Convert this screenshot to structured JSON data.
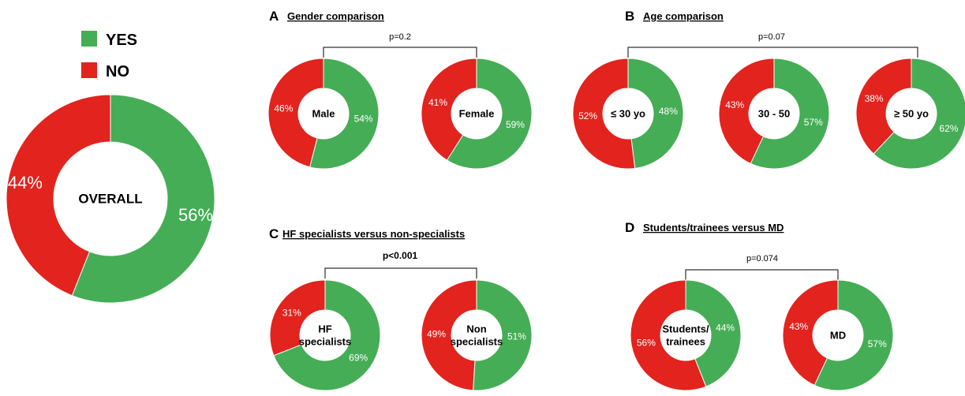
{
  "colors": {
    "yes": "#45ad55",
    "no": "#e2231e"
  },
  "legend": [
    {
      "label": "YES",
      "color": "#45ad55"
    },
    {
      "label": "NO",
      "color": "#e2231e"
    }
  ],
  "chart_data": [
    {
      "type": "pie",
      "id": "overall",
      "center_label": [
        "OVERALL"
      ],
      "slices": [
        {
          "name": "YES",
          "value": 56,
          "label": "56%"
        },
        {
          "name": "NO",
          "value": 44,
          "label": "44%"
        }
      ]
    },
    {
      "type": "pie",
      "panel": "A",
      "id": "male",
      "center_label": [
        "Male"
      ],
      "slices": [
        {
          "name": "YES",
          "value": 54,
          "label": "54%"
        },
        {
          "name": "NO",
          "value": 46,
          "label": "46%"
        }
      ]
    },
    {
      "type": "pie",
      "panel": "A",
      "id": "female",
      "center_label": [
        "Female"
      ],
      "slices": [
        {
          "name": "YES",
          "value": 59,
          "label": "59%"
        },
        {
          "name": "NO",
          "value": 41,
          "label": "41%"
        }
      ]
    },
    {
      "type": "pie",
      "panel": "B",
      "id": "age-le30",
      "center_label": [
        "≤ 30 yo"
      ],
      "slices": [
        {
          "name": "YES",
          "value": 48,
          "label": "48%"
        },
        {
          "name": "NO",
          "value": 52,
          "label": "52%"
        }
      ]
    },
    {
      "type": "pie",
      "panel": "B",
      "id": "age-30-50",
      "center_label": [
        "30 - 50"
      ],
      "slices": [
        {
          "name": "YES",
          "value": 57,
          "label": "57%"
        },
        {
          "name": "NO",
          "value": 43,
          "label": "43%"
        }
      ]
    },
    {
      "type": "pie",
      "panel": "B",
      "id": "age-ge50",
      "center_label": [
        "≥ 50 yo"
      ],
      "slices": [
        {
          "name": "YES",
          "value": 62,
          "label": "62%"
        },
        {
          "name": "NO",
          "value": 38,
          "label": "38%"
        }
      ]
    },
    {
      "type": "pie",
      "panel": "C",
      "id": "hf-specialists",
      "center_label": [
        "HF",
        "specialists"
      ],
      "slices": [
        {
          "name": "YES",
          "value": 69,
          "label": "69%"
        },
        {
          "name": "NO",
          "value": 31,
          "label": "31%"
        }
      ]
    },
    {
      "type": "pie",
      "panel": "C",
      "id": "non-specialists",
      "center_label": [
        "Non",
        "specialists"
      ],
      "slices": [
        {
          "name": "YES",
          "value": 51,
          "label": "51%"
        },
        {
          "name": "NO",
          "value": 49,
          "label": "49%"
        }
      ]
    },
    {
      "type": "pie",
      "panel": "D",
      "id": "students-trainees",
      "center_label": [
        "Students/",
        "trainees"
      ],
      "slices": [
        {
          "name": "YES",
          "value": 44,
          "label": "44%"
        },
        {
          "name": "NO",
          "value": 56,
          "label": "56%"
        }
      ]
    },
    {
      "type": "pie",
      "panel": "D",
      "id": "md",
      "center_label": [
        "MD"
      ],
      "slices": [
        {
          "name": "YES",
          "value": 57,
          "label": "57%"
        },
        {
          "name": "NO",
          "value": 43,
          "label": "43%"
        }
      ]
    }
  ],
  "panels": [
    {
      "letter": "A",
      "title": "Gender comparison",
      "p_value": "p=0.2"
    },
    {
      "letter": "B",
      "title": "Age comparison",
      "p_value": "p=0.07"
    },
    {
      "letter": "C",
      "title": "HF specialists versus non-specialists",
      "p_value": "p<0.001"
    },
    {
      "letter": "D",
      "title": "Students/trainees versus MD",
      "p_value": "p=0.074"
    }
  ]
}
